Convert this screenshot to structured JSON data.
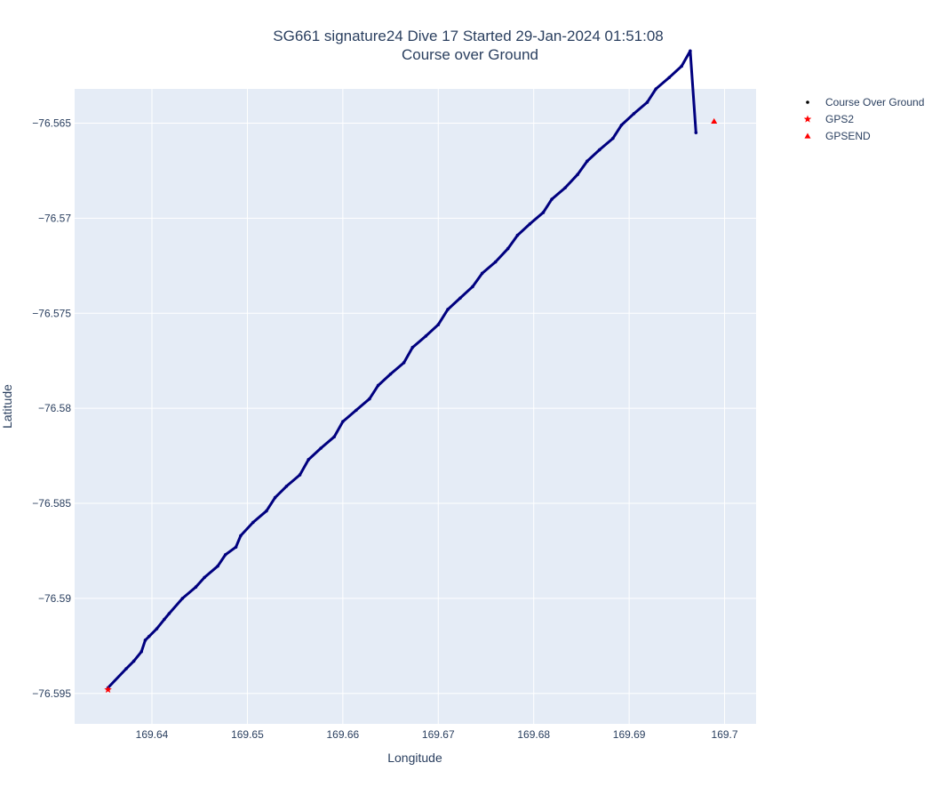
{
  "chart_data": {
    "type": "scatter",
    "title": "SG661 signature24 Dive 17 Started 29-Jan-2024 01:51:08",
    "subtitle": "Course over Ground",
    "xlabel": "Longitude",
    "ylabel": "Latitude",
    "xlim": [
      169.6319,
      169.7033
    ],
    "ylim": [
      -76.5966,
      -76.5632
    ],
    "x_ticks": [
      169.64,
      169.65,
      169.66,
      169.67,
      169.68,
      169.69,
      169.7
    ],
    "x_tick_labels": [
      "169.64",
      "169.65",
      "169.66",
      "169.67",
      "169.68",
      "169.69",
      "169.7"
    ],
    "y_ticks": [
      -76.565,
      -76.57,
      -76.575,
      -76.58,
      -76.585,
      -76.59,
      -76.595
    ],
    "y_tick_labels": [
      "−76.565",
      "−76.57",
      "−76.575",
      "−76.58",
      "−76.585",
      "−76.59",
      "−76.595"
    ],
    "grid": true,
    "legend_position": "top-right",
    "colors": {
      "plot_background": "#e5ecf6",
      "course": "#00007f",
      "gps_markers": "#ff0000"
    },
    "series": [
      {
        "name": "Course Over Ground",
        "marker": "dot",
        "x": [
          169.6354,
          169.6373,
          169.6381,
          169.6389,
          169.6393,
          169.6397,
          169.6405,
          169.6413,
          169.6418,
          169.6432,
          169.6446,
          169.6455,
          169.6469,
          169.6477,
          169.6488,
          169.6493,
          169.6506,
          169.652,
          169.6529,
          169.6541,
          169.6555,
          169.6564,
          169.6577,
          169.6591,
          169.66,
          169.6614,
          169.6628,
          169.6637,
          169.665,
          169.6664,
          169.6673,
          169.6687,
          169.67,
          169.671,
          169.6723,
          169.6736,
          169.6746,
          169.676,
          169.6773,
          169.6783,
          169.6796,
          169.681,
          169.6819,
          169.6833,
          169.6846,
          169.6856,
          169.6869,
          169.6883,
          169.6892,
          169.6905,
          169.6919,
          169.6928,
          169.6942,
          169.6955,
          169.6964,
          169.697
        ],
        "y": [
          -76.5947,
          -76.5937,
          -76.5933,
          -76.5928,
          -76.5922,
          -76.592,
          -76.5916,
          -76.5911,
          -76.5908,
          -76.59,
          -76.5894,
          -76.5889,
          -76.5883,
          -76.5877,
          -76.5873,
          -76.5867,
          -76.586,
          -76.5854,
          -76.5847,
          -76.5841,
          -76.5835,
          -76.5827,
          -76.5821,
          -76.5815,
          -76.5807,
          -76.5801,
          -76.5795,
          -76.5788,
          -76.5782,
          -76.5776,
          -76.5768,
          -76.5762,
          -76.5756,
          -76.5748,
          -76.5742,
          -76.5736,
          -76.5729,
          -76.5723,
          -76.5716,
          -76.5709,
          -76.5703,
          -76.5697,
          -76.569,
          -76.5684,
          -76.5677,
          -76.567,
          -76.5664,
          -76.5658,
          -76.5651,
          -76.5645,
          -76.5639,
          -76.5632,
          -76.5626,
          -76.562,
          -76.5612,
          -76.5655
        ]
      },
      {
        "name": "GPS2",
        "marker": "star",
        "x": [
          169.6354
        ],
        "y": [
          -76.5948
        ]
      },
      {
        "name": "GPSEND",
        "marker": "triangle-up",
        "x": [
          169.6989
        ],
        "y": [
          -76.5649
        ]
      }
    ]
  }
}
